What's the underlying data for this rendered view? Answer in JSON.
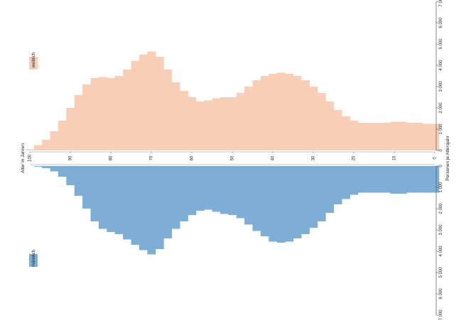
{
  "chart_data": {
    "type": "bar",
    "orientation": "rotated-population-pyramid",
    "ylabel": "Alter in Jahren",
    "xlabel": "Personen je Altersjahr",
    "age_ticks": [
      "100",
      "90",
      "80",
      "70",
      "60",
      "50",
      "40",
      "30",
      "20",
      "10",
      "0"
    ],
    "value_ticks_right": [
      "0",
      "1 000",
      "2 000",
      "3 000",
      "4 000",
      "5 000",
      "6 000",
      "7 000"
    ],
    "value_ticks_left": [
      "0",
      "1 000",
      "2 000",
      "3 000",
      "4 000",
      "5 000",
      "6 000",
      "7 000"
    ],
    "xlim": [
      0,
      7000
    ],
    "ages": [
      100,
      98,
      96,
      94,
      92,
      90,
      88,
      86,
      84,
      82,
      80,
      78,
      76,
      74,
      72,
      70,
      68,
      66,
      64,
      62,
      60,
      58,
      56,
      54,
      52,
      50,
      48,
      46,
      44,
      42,
      40,
      38,
      36,
      34,
      32,
      30,
      28,
      26,
      24,
      22,
      20,
      18,
      16,
      14,
      12,
      10,
      8,
      6,
      4,
      2,
      0
    ],
    "series": [
      {
        "name": "weiblich",
        "color": "#f8cfb6",
        "values": [
          50,
          250,
          500,
          900,
          1400,
          2000,
          2600,
          3100,
          3400,
          3450,
          3400,
          3500,
          3800,
          4200,
          4500,
          4650,
          4400,
          3800,
          3200,
          2800,
          2500,
          2300,
          2350,
          2450,
          2500,
          2500,
          2700,
          3000,
          3300,
          3500,
          3600,
          3650,
          3600,
          3500,
          3300,
          3000,
          2700,
          2300,
          1900,
          1600,
          1400,
          1300,
          1300,
          1300,
          1300,
          1350,
          1350,
          1300,
          1300,
          1250,
          1250
        ]
      },
      {
        "name": "männlich",
        "color": "#7eaed6",
        "values": [
          0,
          30,
          100,
          250,
          500,
          900,
          1400,
          2000,
          2600,
          2950,
          3100,
          3200,
          3450,
          3700,
          3950,
          4150,
          3900,
          3400,
          2950,
          2600,
          2300,
          2100,
          2050,
          2150,
          2250,
          2300,
          2450,
          2750,
          3050,
          3300,
          3550,
          3600,
          3550,
          3400,
          3200,
          2900,
          2600,
          2200,
          1800,
          1550,
          1350,
          1250,
          1250,
          1250,
          1250,
          1300,
          1300,
          1250,
          1250,
          1250,
          1250
        ]
      }
    ],
    "legend": [
      "weiblich",
      "männlich"
    ],
    "legend_placement": "left",
    "grid": false
  }
}
